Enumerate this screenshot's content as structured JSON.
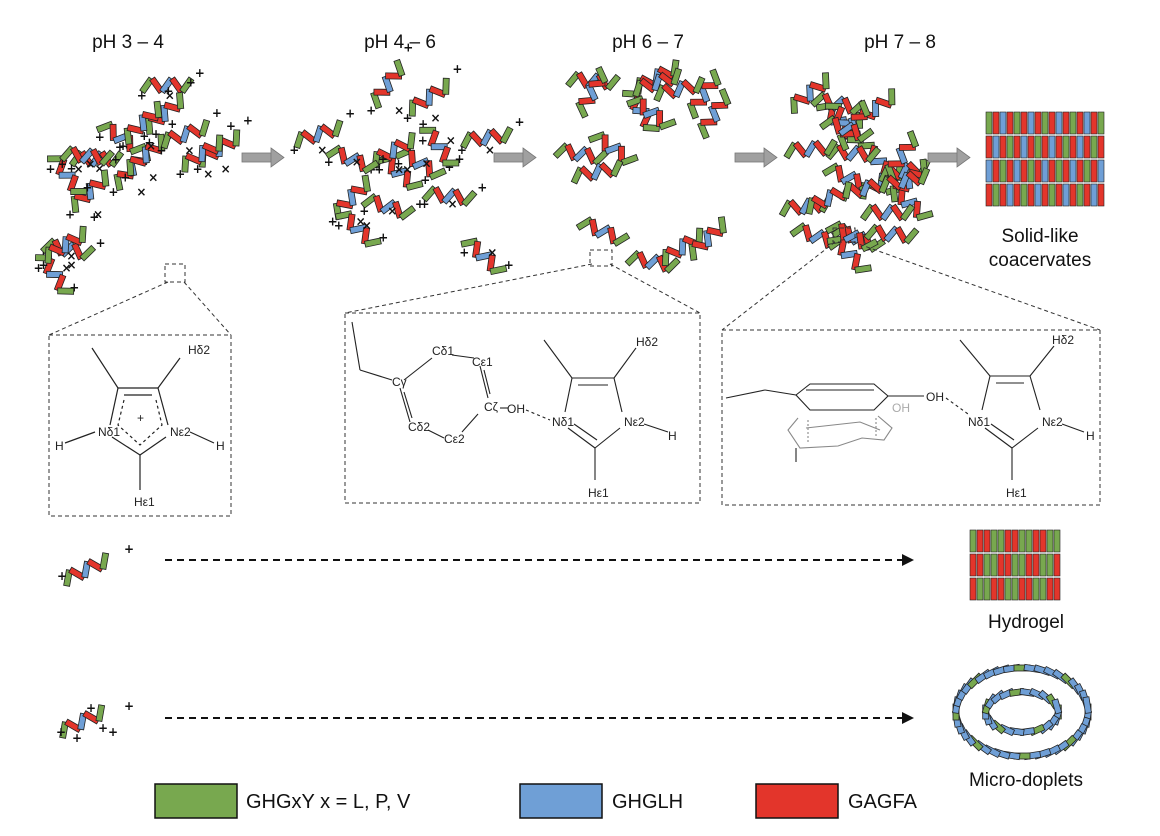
{
  "stages": [
    "pH 3 – 4",
    "pH 4 – 6",
    "pH 6 – 7",
    "pH 7 – 8"
  ],
  "products": {
    "coacervate": [
      "Solid-like",
      "coacervates"
    ],
    "hydrogel": "Hydrogel",
    "droplets": "Micro-doplets"
  },
  "legend": [
    {
      "label": "GHGxY x = L, P, V",
      "color": "#78a84f"
    },
    {
      "label": "GHGLH",
      "color": "#6f9fd6"
    },
    {
      "label": "GAGFA",
      "color": "#e3352b"
    }
  ],
  "colors": {
    "green": "#78a84f",
    "blue": "#6f9fd6",
    "red": "#e3352b",
    "arrow": "#a0a0a0"
  },
  "structures": {
    "protonated": {
      "atoms": [
        "Hδ2",
        "Nδ1",
        "Nε2",
        "H",
        "H",
        "Hε1",
        "+"
      ]
    },
    "hbond": {
      "atoms": [
        "Cδ1",
        "Cε1",
        "Cγ",
        "Cζ",
        "OH",
        "Cδ2",
        "Cε2",
        "Nδ1",
        "Nε2",
        "H",
        "Hδ2",
        "Hε1"
      ]
    },
    "stacked": {
      "atoms": [
        "OH",
        "OH",
        "Nδ1",
        "Nε2",
        "H",
        "Hδ2",
        "Hε1"
      ]
    }
  }
}
